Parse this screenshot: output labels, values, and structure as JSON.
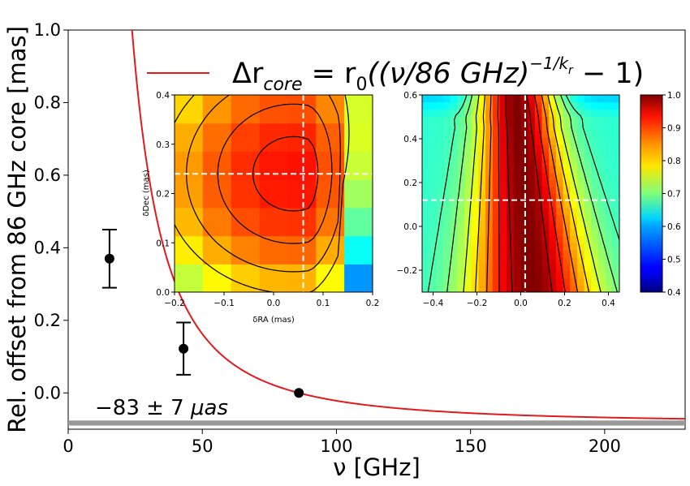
{
  "chart_data": [
    {
      "type": "scatter",
      "role": "main",
      "xlabel": "ν [GHz]",
      "ylabel": "Rel. offset from 86 GHz core [mas]",
      "xlim": [
        0,
        230
      ],
      "ylim": [
        -0.1,
        1.0
      ],
      "xticks": [
        0,
        50,
        100,
        150,
        200
      ],
      "yticks": [
        0.0,
        0.2,
        0.4,
        0.6,
        0.8,
        1.0
      ],
      "xtick_labels": [
        "0",
        "50",
        "100",
        "150",
        "200"
      ],
      "ytick_labels": [
        "0.0",
        "0.2",
        "0.4",
        "0.6",
        "0.8",
        "1.0"
      ],
      "grid": false,
      "legend": {
        "position": "top",
        "label": "Δr_core = r0((ν/86 GHz)^(−1/k_r) − 1)",
        "parts": {
          "delta_r": "Δr",
          "core_sub": "core",
          "eq_r": " = r",
          "r_sub": "0",
          "body": "((ν/86 GHz)",
          "exp": "−1/k",
          "exp_sub": "r",
          "tail": " − 1)"
        }
      },
      "series": [
        {
          "kind": "points_with_errorbars",
          "color": "#000000",
          "points": [
            {
              "x": 15.4,
              "y": 0.37,
              "yerr_low": 0.08,
              "yerr_high": 0.08
            },
            {
              "x": 43,
              "y": 0.122,
              "yerr_low": 0.072,
              "yerr_high": 0.072
            },
            {
              "x": 86,
              "y": 0.0,
              "yerr_low": 0,
              "yerr_high": 0
            }
          ]
        },
        {
          "kind": "fit_curve",
          "color": "#e31a1c",
          "model": "r0*((nu/86)^(-1/kr)-1)",
          "r0": 0.083,
          "kr": 0.5
        },
        {
          "kind": "asymptote_band",
          "color": "#999999",
          "y_center": -0.083,
          "y_halfwidth": 0.007,
          "label": "−83 ± 7 μas",
          "label_parts": {
            "value": "−83 ± 7 ",
            "unit": "μas"
          }
        }
      ]
    },
    {
      "type": "heatmap",
      "role": "inset-left",
      "xlabel": "δRA (mas)",
      "ylabel": "δDec (mas)",
      "xlim": [
        -0.2,
        0.2
      ],
      "ylim": [
        0.0,
        0.4
      ],
      "xticks": [
        -0.2,
        -0.1,
        0.0,
        0.1,
        0.2
      ],
      "xtick_labels": [
        "−0.2",
        "−0.1",
        "0.0",
        "0.1",
        "0.2"
      ],
      "yticks": [
        0.0,
        0.1,
        0.2,
        0.3,
        0.4
      ],
      "ytick_labels": [
        "0.0",
        "0.1",
        "0.2",
        "0.3",
        "0.4"
      ],
      "crosshair": {
        "x": 0.06,
        "y": 0.24
      },
      "colormap": "jet",
      "clim": [
        0.4,
        1.0
      ]
    },
    {
      "type": "heatmap",
      "role": "inset-right",
      "xlabel": "",
      "ylabel": "",
      "xlim": [
        -0.45,
        0.45
      ],
      "ylim": [
        -0.3,
        0.6
      ],
      "xticks": [
        -0.4,
        -0.2,
        0.0,
        0.2,
        0.4
      ],
      "xtick_labels": [
        "−0.4",
        "−0.2",
        "0.0",
        "0.2",
        "0.4"
      ],
      "yticks": [
        -0.2,
        0.0,
        0.2,
        0.4,
        0.6
      ],
      "ytick_labels": [
        "−0.2",
        "0.0",
        "0.2",
        "0.4",
        "0.6"
      ],
      "crosshair": {
        "x": 0.02,
        "y": 0.12
      },
      "colormap": "jet",
      "clim": [
        0.4,
        1.0
      ]
    },
    {
      "type": "colorbar",
      "role": "colorbar",
      "colormap": "jet",
      "clim": [
        0.4,
        1.0
      ],
      "ticks": [
        0.4,
        0.5,
        0.6,
        0.7,
        0.8,
        0.9,
        1.0
      ],
      "tick_labels": [
        "0.4",
        "0.5",
        "0.6",
        "0.7",
        "0.8",
        "0.9",
        "1.0"
      ]
    }
  ]
}
